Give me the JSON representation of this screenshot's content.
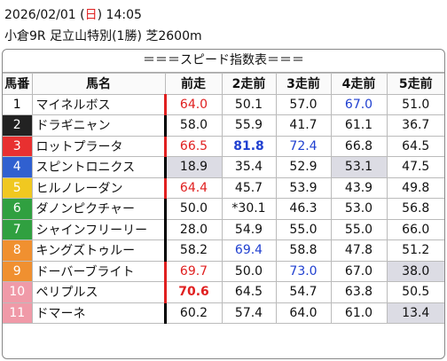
{
  "header": {
    "date": "2026/02/01",
    "weekday_open": "(",
    "weekday": "日",
    "weekday_close": ")",
    "time": "14:05",
    "race": "小倉9R 足立山特別(1勝) 芝2600m"
  },
  "table": {
    "title": "＝＝＝スピード指数表＝＝＝",
    "columns": [
      "馬番",
      "馬名",
      "前走",
      "2走前",
      "3走前",
      "4走前",
      "5走前"
    ],
    "rows": [
      {
        "number": "1",
        "frame_color": "#ffffff",
        "number_color": "#000000",
        "name": "マイネルボス",
        "bar": "#e02020",
        "cells": [
          {
            "text": "64.0",
            "color": "#e02020"
          },
          {
            "text": "50.1"
          },
          {
            "text": "57.0"
          },
          {
            "text": "67.0",
            "color": "#2040d0"
          },
          {
            "text": "51.0"
          }
        ]
      },
      {
        "number": "2",
        "frame_color": "#222222",
        "number_color": "#ffffff",
        "name": "ドラギニャン",
        "bar": "#000000",
        "cells": [
          {
            "text": "58.0"
          },
          {
            "text": "55.9"
          },
          {
            "text": "41.7"
          },
          {
            "text": "61.1"
          },
          {
            "text": "36.7"
          }
        ]
      },
      {
        "number": "3",
        "frame_color": "#e83030",
        "number_color": "#ffffff",
        "name": "ロットプラータ",
        "bar": "#e02020",
        "cells": [
          {
            "text": "66.5",
            "color": "#e02020"
          },
          {
            "text": "81.8",
            "color": "#2040d0",
            "bold": true
          },
          {
            "text": "72.4",
            "color": "#2040d0"
          },
          {
            "text": "66.8"
          },
          {
            "text": "64.5"
          }
        ]
      },
      {
        "number": "4",
        "frame_color": "#3060d0",
        "number_color": "#ffffff",
        "name": "スピントロニクス",
        "bar": "#000000",
        "cells": [
          {
            "text": "18.9",
            "bg": "#dcdce4"
          },
          {
            "text": "35.4"
          },
          {
            "text": "52.9"
          },
          {
            "text": "53.1",
            "bg": "#dcdce4"
          },
          {
            "text": "47.5"
          }
        ]
      },
      {
        "number": "5",
        "frame_color": "#f0c820",
        "number_color": "#ffffff",
        "name": "ヒルノレーダン",
        "bar": "#e02020",
        "cells": [
          {
            "text": "64.4",
            "color": "#e02020"
          },
          {
            "text": "45.7"
          },
          {
            "text": "53.9"
          },
          {
            "text": "43.9"
          },
          {
            "text": "49.8"
          }
        ]
      },
      {
        "number": "6",
        "frame_color": "#30a040",
        "number_color": "#ffffff",
        "name": "ダノンピクチャー",
        "bar": "#000000",
        "cells": [
          {
            "text": "50.0"
          },
          {
            "text": "*30.1"
          },
          {
            "text": "46.3"
          },
          {
            "text": "53.0"
          },
          {
            "text": "56.8"
          }
        ]
      },
      {
        "number": "7",
        "frame_color": "#30a040",
        "number_color": "#ffffff",
        "name": "シャインフリーリー",
        "bar": "#000000",
        "cells": [
          {
            "text": "28.0"
          },
          {
            "text": "54.9"
          },
          {
            "text": "55.0"
          },
          {
            "text": "55.0"
          },
          {
            "text": "66.0"
          }
        ]
      },
      {
        "number": "8",
        "frame_color": "#f09030",
        "number_color": "#ffffff",
        "name": "キングズトゥルー",
        "bar": "#000000",
        "cells": [
          {
            "text": "58.2"
          },
          {
            "text": "69.4",
            "color": "#2040d0"
          },
          {
            "text": "58.8"
          },
          {
            "text": "47.8"
          },
          {
            "text": "51.2"
          }
        ]
      },
      {
        "number": "9",
        "frame_color": "#f09030",
        "number_color": "#ffffff",
        "name": "ドーバーブライト",
        "bar": "#e02020",
        "cells": [
          {
            "text": "69.7",
            "color": "#e02020"
          },
          {
            "text": "50.0"
          },
          {
            "text": "73.0",
            "color": "#2040d0"
          },
          {
            "text": "67.0"
          },
          {
            "text": "38.0",
            "bg": "#dcdce4"
          }
        ]
      },
      {
        "number": "10",
        "frame_color": "#f09aa8",
        "number_color": "#ffffff",
        "name": "ペリプルス",
        "bar": "#e02020",
        "cells": [
          {
            "text": "70.6",
            "color": "#e02020",
            "bold": true
          },
          {
            "text": "64.5"
          },
          {
            "text": "54.7"
          },
          {
            "text": "63.8"
          },
          {
            "text": "50.5"
          }
        ]
      },
      {
        "number": "11",
        "frame_color": "#f09aa8",
        "number_color": "#ffffff",
        "name": "ドマーネ",
        "bar": "#000000",
        "cells": [
          {
            "text": "60.2"
          },
          {
            "text": "57.4"
          },
          {
            "text": "64.0"
          },
          {
            "text": "61.0"
          },
          {
            "text": "13.4",
            "bg": "#dcdce4"
          }
        ]
      }
    ]
  }
}
